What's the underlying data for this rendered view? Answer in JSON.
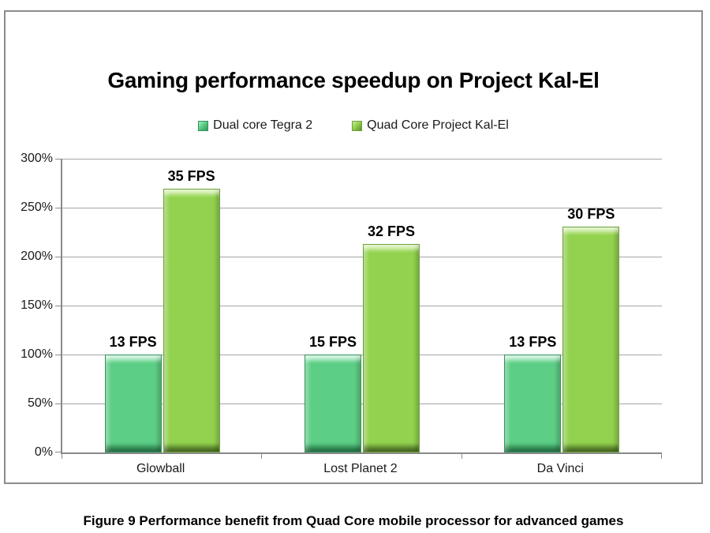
{
  "chart_data": {
    "type": "bar",
    "title": "Gaming performance speedup on Project Kal-El",
    "categories": [
      "Glowball",
      "Lost Planet 2",
      "Da Vinci"
    ],
    "series": [
      {
        "name": "Dual core Tegra 2",
        "values_pct": [
          100,
          100,
          100
        ],
        "data_labels": [
          "13 FPS",
          "15 FPS",
          "13 FPS"
        ],
        "color": "#5cce85",
        "color_light": "#a9ecc6",
        "color_dark": "#2f9a5b",
        "color_border": "#35915a"
      },
      {
        "name": "Quad Core Project Kal-El",
        "values_pct": [
          269,
          213,
          231
        ],
        "data_labels": [
          "35 FPS",
          "32 FPS",
          "30 FPS"
        ],
        "color": "#92d24f",
        "color_light": "#c8ec96",
        "color_dark": "#5e8c2a",
        "color_border": "#6da23a"
      }
    ],
    "xlabel": "",
    "ylabel": "",
    "y_ticks": [
      "0%",
      "50%",
      "100%",
      "150%",
      "200%",
      "250%",
      "300%"
    ],
    "ylim": [
      0,
      300
    ],
    "grid": true,
    "legend_position": "top"
  },
  "caption": "Figure 9 Performance benefit from Quad Core mobile processor for advanced games",
  "style": {
    "gridline_color": "#a6a6a6",
    "axis_color": "#898989",
    "frame_border_color": "#8c8c8c",
    "background": "#ffffff"
  }
}
